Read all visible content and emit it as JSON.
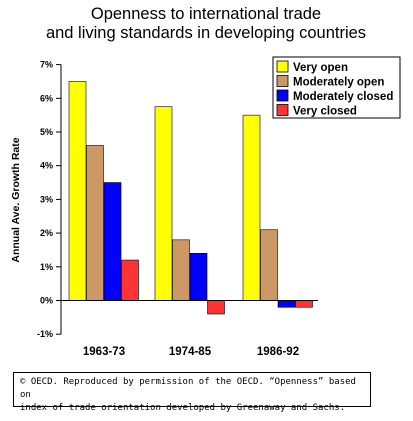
{
  "chart_data": {
    "type": "bar",
    "title": [
      "Openness to international trade",
      "and living standards in developing countries"
    ],
    "ylabel": "Annual Ave. Growth Rate",
    "xlabel": "",
    "categories": [
      "1963-73",
      "1974-85",
      "1986-92"
    ],
    "ylim": [
      -1,
      7
    ],
    "yticks": [
      "-1%",
      "0%",
      "1%",
      "2%",
      "3%",
      "4%",
      "5%",
      "6%",
      "7%"
    ],
    "legend_position": "top-right",
    "series": [
      {
        "name": "Very open",
        "color": "#ffff00",
        "values": [
          6.5,
          5.75,
          5.5
        ]
      },
      {
        "name": "Moderately open",
        "color": "#cc9966",
        "values": [
          4.6,
          1.8,
          2.1
        ]
      },
      {
        "name": "Moderately closed",
        "color": "#0000ff",
        "values": [
          3.5,
          1.4,
          -0.2
        ]
      },
      {
        "name": "Very closed",
        "color": "#ff3333",
        "values": [
          1.2,
          -0.4,
          -0.2
        ]
      }
    ]
  },
  "footer": {
    "line1": "© OECD. Reproduced by permission of the OECD.  “Openness” based on",
    "line2": "index of trade orientation developed by Greenaway and Sachs."
  }
}
